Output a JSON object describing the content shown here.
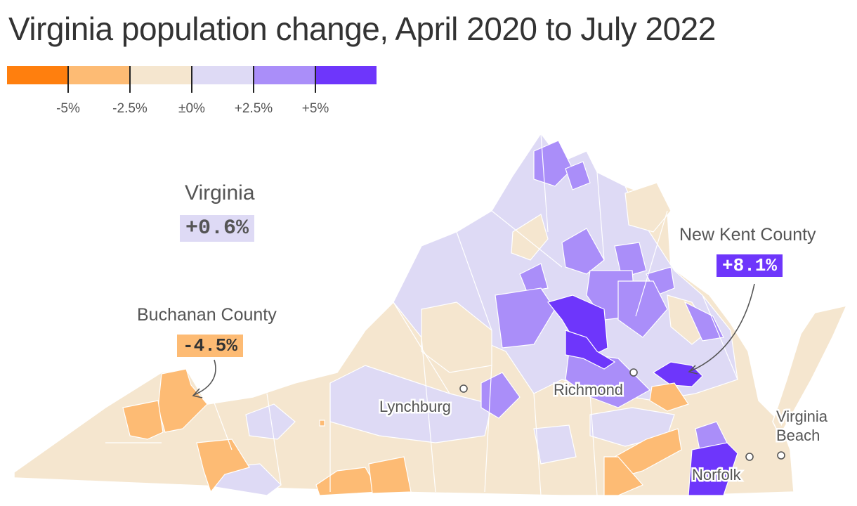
{
  "title": "Virginia population change, April 2020 to July 2022",
  "legend": {
    "colors": [
      "#ff7f0e",
      "#fdbb74",
      "#f5e6cf",
      "#dedaf5",
      "#aa8ef9",
      "#6e36fb"
    ],
    "ticks": [
      "-5%",
      "-2.5%",
      "±0%",
      "+2.5%",
      "+5%"
    ]
  },
  "state": {
    "name": "Virginia",
    "value": "+0.6%"
  },
  "callouts": {
    "new_kent": {
      "name": "New Kent County",
      "value": "+8.1%"
    },
    "buchanan": {
      "name": "Buchanan County",
      "value": "-4.5%"
    }
  },
  "cities": {
    "richmond": "Richmond",
    "lynchburg": "Lynchburg",
    "norfolk": "Norfolk",
    "virginia_beach": "Virginia Beach",
    "virginia_beach_line1": "Virginia",
    "virginia_beach_line2": "Beach"
  },
  "colors": {
    "text": "#333333",
    "label_gray": "#555555",
    "state_value_bg": "#dedaf5",
    "new_kent_bg": "#6e36fb",
    "buchanan_bg": "#fdbb74"
  }
}
